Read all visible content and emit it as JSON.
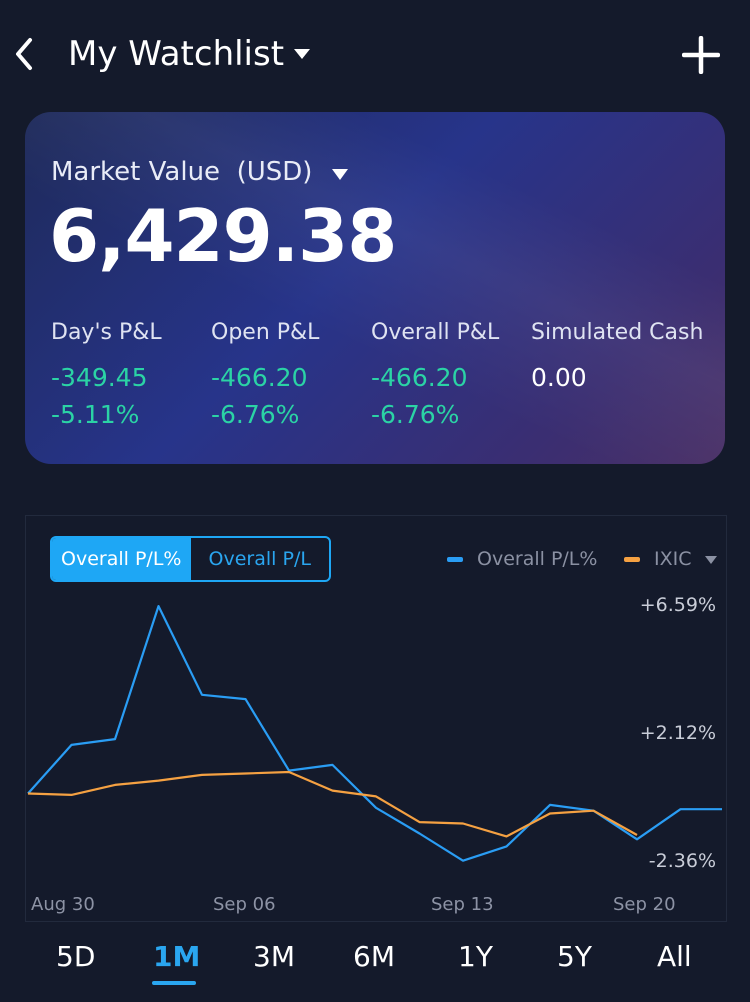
{
  "header": {
    "title": "My Watchlist"
  },
  "card": {
    "label": "Market Value",
    "currency": "(USD)",
    "value": "6,429.38",
    "stats": [
      {
        "label": "Day's P&L",
        "value": "-349.45",
        "percent": "-5.11%"
      },
      {
        "label": "Open P&L",
        "value": "-466.20",
        "percent": "-6.76%"
      },
      {
        "label": "Overall P&L",
        "value": "-466.20",
        "percent": "-6.76%"
      },
      {
        "label": "Simulated Cash",
        "value": "0.00",
        "percent": ""
      }
    ]
  },
  "chart": {
    "toggle": {
      "active": "Overall P/L%",
      "inactive": "Overall P/L"
    },
    "legend": [
      {
        "name": "Overall P/L%",
        "color": "#2a9df4"
      },
      {
        "name": "IXIC",
        "color": "#f5a142"
      }
    ],
    "y_ticks": [
      "+6.59%",
      "+2.12%",
      "-2.36%"
    ],
    "x_ticks": [
      "Aug 30",
      "Sep 06",
      "Sep 13",
      "Sep 20"
    ]
  },
  "chart_data": {
    "type": "line",
    "ylim": [
      -2.36,
      6.59
    ],
    "series": [
      {
        "name": "Overall P/L%",
        "color": "#2a9df4",
        "values": [
          0.0,
          1.7,
          1.9,
          6.55,
          3.45,
          3.3,
          0.8,
          1.0,
          -0.5,
          -1.4,
          -2.35,
          -1.85,
          -0.4,
          -0.6,
          -1.6,
          -0.55,
          -0.55
        ]
      },
      {
        "name": "IXIC",
        "color": "#f5a142",
        "values": [
          0.0,
          -0.05,
          0.3,
          0.45,
          0.65,
          0.7,
          0.75,
          0.1,
          -0.1,
          -1.0,
          -1.05,
          -1.5,
          -0.7,
          -0.6,
          -1.45
        ]
      }
    ]
  },
  "range_tabs": [
    "5D",
    "1M",
    "3M",
    "6M",
    "1Y",
    "5Y",
    "All"
  ],
  "active_range": "1M",
  "colors": {
    "accent": "#2aa6f0",
    "gain_loss": "#2bd3a5",
    "background": "#141a2b"
  }
}
